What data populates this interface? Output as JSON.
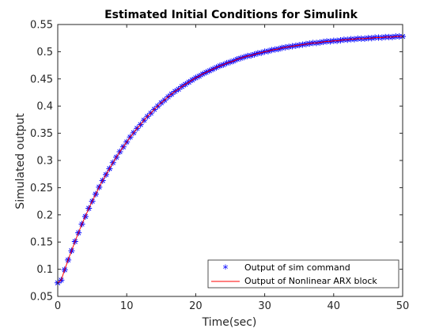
{
  "chart_data": {
    "type": "line",
    "title": "Estimated Initial Conditions for Simulink",
    "xlabel": "Time(sec)",
    "ylabel": "Simulated output",
    "xlim": [
      0,
      50
    ],
    "ylim": [
      0.05,
      0.55
    ],
    "xticks": [
      0,
      10,
      20,
      30,
      40,
      50
    ],
    "xtick_labels": [
      "0",
      "10",
      "20",
      "30",
      "40",
      "50"
    ],
    "yticks": [
      0.05,
      0.1,
      0.15,
      0.2,
      0.25,
      0.3,
      0.35,
      0.4,
      0.45,
      0.5,
      0.55
    ],
    "ytick_labels": [
      "0.05",
      "0.1",
      "0.15",
      "0.2",
      "0.25",
      "0.3",
      "0.35",
      "0.4",
      "0.45",
      "0.5",
      "0.55"
    ],
    "grid": false,
    "legend_position": "bottom-right",
    "series": [
      {
        "name": "Output of sim command",
        "style": "markers",
        "marker": "asterisk",
        "color": "#0000ff",
        "x": [
          0.0,
          0.5,
          1.0,
          1.5,
          2.0,
          2.5,
          3.0,
          3.5,
          4.0,
          4.5,
          5.0,
          5.5,
          6.0,
          6.5,
          7.0,
          7.5,
          8.0,
          8.5,
          9.0,
          9.5,
          10.0,
          10.5,
          11.0,
          11.5,
          12.0,
          12.5,
          13.0,
          13.5,
          14.0,
          14.5,
          15.0,
          15.5,
          16.0,
          16.5,
          17.0,
          17.5,
          18.0,
          18.5,
          19.0,
          19.5,
          20.0,
          20.5,
          21.0,
          21.5,
          22.0,
          22.5,
          23.0,
          23.5,
          24.0,
          24.5,
          25.0,
          25.5,
          26.0,
          26.5,
          27.0,
          27.5,
          28.0,
          28.5,
          29.0,
          29.5,
          30.0,
          30.5,
          31.0,
          31.5,
          32.0,
          32.5,
          33.0,
          33.5,
          34.0,
          34.5,
          35.0,
          35.5,
          36.0,
          36.5,
          37.0,
          37.5,
          38.0,
          38.5,
          39.0,
          39.5,
          40.0,
          40.5,
          41.0,
          41.5,
          42.0,
          42.5,
          43.0,
          43.5,
          44.0,
          44.5,
          45.0,
          45.5,
          46.0,
          46.5,
          47.0,
          47.5,
          48.0,
          48.5,
          49.0,
          49.5,
          50.0
        ],
        "y": [
          0.075,
          0.08,
          0.099,
          0.117,
          0.134,
          0.151,
          0.167,
          0.183,
          0.197,
          0.212,
          0.225,
          0.238,
          0.251,
          0.263,
          0.274,
          0.285,
          0.296,
          0.306,
          0.316,
          0.325,
          0.334,
          0.343,
          0.351,
          0.359,
          0.366,
          0.374,
          0.381,
          0.387,
          0.394,
          0.4,
          0.406,
          0.411,
          0.417,
          0.422,
          0.427,
          0.431,
          0.436,
          0.44,
          0.444,
          0.448,
          0.452,
          0.455,
          0.459,
          0.462,
          0.465,
          0.468,
          0.471,
          0.474,
          0.476,
          0.479,
          0.481,
          0.483,
          0.486,
          0.488,
          0.49,
          0.492,
          0.493,
          0.495,
          0.497,
          0.498,
          0.5,
          0.501,
          0.503,
          0.504,
          0.505,
          0.507,
          0.508,
          0.509,
          0.51,
          0.511,
          0.512,
          0.513,
          0.514,
          0.515,
          0.516,
          0.516,
          0.517,
          0.518,
          0.519,
          0.519,
          0.52,
          0.52,
          0.521,
          0.522,
          0.522,
          0.523,
          0.523,
          0.524,
          0.524,
          0.524,
          0.525,
          0.525,
          0.526,
          0.526,
          0.526,
          0.527,
          0.527,
          0.527,
          0.528,
          0.528,
          0.528
        ]
      },
      {
        "name": "Output of Nonlinear ARX block",
        "style": "line",
        "color": "#ff0000",
        "x": [
          0.0,
          0.5,
          1.0,
          1.5,
          2.0,
          2.5,
          3.0,
          3.5,
          4.0,
          4.5,
          5.0,
          5.5,
          6.0,
          6.5,
          7.0,
          7.5,
          8.0,
          8.5,
          9.0,
          9.5,
          10.0,
          10.5,
          11.0,
          11.5,
          12.0,
          12.5,
          13.0,
          13.5,
          14.0,
          14.5,
          15.0,
          15.5,
          16.0,
          16.5,
          17.0,
          17.5,
          18.0,
          18.5,
          19.0,
          19.5,
          20.0,
          20.5,
          21.0,
          21.5,
          22.0,
          22.5,
          23.0,
          23.5,
          24.0,
          24.5,
          25.0,
          25.5,
          26.0,
          26.5,
          27.0,
          27.5,
          28.0,
          28.5,
          29.0,
          29.5,
          30.0,
          30.5,
          31.0,
          31.5,
          32.0,
          32.5,
          33.0,
          33.5,
          34.0,
          34.5,
          35.0,
          35.5,
          36.0,
          36.5,
          37.0,
          37.5,
          38.0,
          38.5,
          39.0,
          39.5,
          40.0,
          40.5,
          41.0,
          41.5,
          42.0,
          42.5,
          43.0,
          43.5,
          44.0,
          44.5,
          45.0,
          45.5,
          46.0,
          46.5,
          47.0,
          47.5,
          48.0,
          48.5,
          49.0,
          49.5,
          50.0
        ],
        "y": [
          0.075,
          0.08,
          0.099,
          0.117,
          0.134,
          0.151,
          0.167,
          0.183,
          0.197,
          0.212,
          0.225,
          0.238,
          0.251,
          0.263,
          0.274,
          0.285,
          0.296,
          0.306,
          0.316,
          0.325,
          0.334,
          0.343,
          0.351,
          0.359,
          0.366,
          0.374,
          0.381,
          0.387,
          0.394,
          0.4,
          0.406,
          0.411,
          0.417,
          0.422,
          0.427,
          0.431,
          0.436,
          0.44,
          0.444,
          0.448,
          0.452,
          0.455,
          0.459,
          0.462,
          0.465,
          0.468,
          0.471,
          0.474,
          0.476,
          0.479,
          0.481,
          0.483,
          0.486,
          0.488,
          0.49,
          0.492,
          0.493,
          0.495,
          0.497,
          0.498,
          0.5,
          0.501,
          0.503,
          0.504,
          0.505,
          0.507,
          0.508,
          0.509,
          0.51,
          0.511,
          0.512,
          0.513,
          0.514,
          0.515,
          0.516,
          0.516,
          0.517,
          0.518,
          0.519,
          0.519,
          0.52,
          0.52,
          0.521,
          0.522,
          0.522,
          0.523,
          0.523,
          0.524,
          0.524,
          0.524,
          0.525,
          0.525,
          0.526,
          0.526,
          0.526,
          0.527,
          0.527,
          0.527,
          0.528,
          0.528,
          0.528
        ]
      }
    ]
  }
}
